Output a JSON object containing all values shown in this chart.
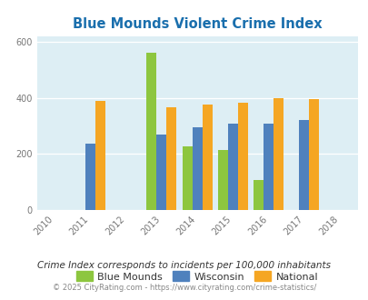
{
  "title": "Blue Mounds Violent Crime Index",
  "all_years": [
    2010,
    2011,
    2012,
    2013,
    2014,
    2015,
    2016,
    2017,
    2018
  ],
  "data_years": [
    2011,
    2013,
    2014,
    2015,
    2016,
    2017
  ],
  "blue_mounds": [
    0,
    560,
    228,
    213,
    107,
    0
  ],
  "wisconsin": [
    238,
    270,
    295,
    308,
    308,
    320
  ],
  "national": [
    390,
    365,
    375,
    383,
    400,
    395
  ],
  "color_blue_mounds": "#8dc63f",
  "color_wisconsin": "#4f81bd",
  "color_national": "#f5a623",
  "bg_color": "#ddeef4",
  "fig_color": "#ffffff",
  "ylim": [
    0,
    620
  ],
  "yticks": [
    0,
    200,
    400,
    600
  ],
  "bar_width": 0.28,
  "title_color": "#1a6fad",
  "subtitle_color": "#333333",
  "footer_color": "#888888",
  "legend_labels": [
    "Blue Mounds",
    "Wisconsin",
    "National"
  ],
  "subtitle": "Crime Index corresponds to incidents per 100,000 inhabitants",
  "footer": "© 2025 CityRating.com - https://www.cityrating.com/crime-statistics/"
}
